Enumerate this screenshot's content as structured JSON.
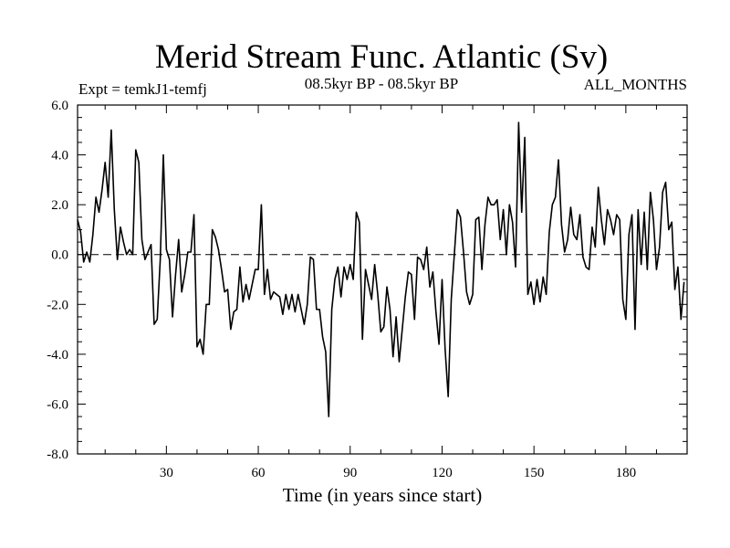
{
  "chart_data": {
    "type": "line",
    "title": "Merid Stream Func. Atlantic (Sv)",
    "subtitle": "08.5kyr BP - 08.5kyr BP",
    "experiment_label": "Expt = temkJ1-temfj",
    "period_label": "ALL_MONTHS",
    "xlabel": "Time (in years since start)",
    "ylabel": "",
    "xlim": [
      1,
      200
    ],
    "ylim": [
      -8,
      6
    ],
    "x_ticks": [
      30,
      60,
      90,
      120,
      150,
      180
    ],
    "x_tick_labels": [
      "30",
      "60",
      "90",
      "120",
      "150",
      "180"
    ],
    "y_ticks": [
      -8,
      -6,
      -4,
      -2,
      0,
      2,
      4,
      6
    ],
    "y_tick_labels": [
      "-8.0",
      "-6.0",
      "-4.0",
      "-2.0",
      "0.0",
      "2.0",
      "4.0",
      "6.0"
    ],
    "zero_line": {
      "value": 0,
      "style": "dashed"
    },
    "grid": false,
    "series": [
      {
        "name": "Merid Stream Func. Atlantic",
        "color": "#000000",
        "x_start": 1,
        "x_step": 1,
        "values": [
          1.4,
          0.9,
          -0.3,
          0.1,
          -0.3,
          0.8,
          2.3,
          1.7,
          2.6,
          3.7,
          2.3,
          5.0,
          1.8,
          -0.2,
          1.1,
          0.5,
          0.0,
          0.2,
          0.0,
          4.2,
          3.7,
          0.6,
          -0.2,
          0.1,
          0.4,
          -2.8,
          -2.6,
          -0.2,
          4.0,
          0.2,
          -0.2,
          -2.5,
          -0.8,
          0.6,
          -1.5,
          -0.8,
          0.1,
          0.1,
          1.6,
          -3.7,
          -3.4,
          -4.0,
          -2.0,
          -2.0,
          1.0,
          0.7,
          0.2,
          -0.6,
          -1.5,
          -1.4,
          -3.0,
          -2.3,
          -2.2,
          -0.5,
          -1.9,
          -1.2,
          -1.8,
          -1.2,
          -0.6,
          -0.6,
          2.0,
          -1.6,
          -0.6,
          -1.8,
          -1.5,
          -1.6,
          -1.7,
          -2.4,
          -1.6,
          -2.2,
          -1.6,
          -2.3,
          -1.6,
          -2.2,
          -2.8,
          -2.0,
          -0.1,
          -0.2,
          -2.2,
          -2.2,
          -3.3,
          -3.9,
          -6.5,
          -2.2,
          -1.0,
          -0.5,
          -1.7,
          -0.5,
          -1.0,
          -0.4,
          -1.0,
          1.7,
          1.3,
          -3.4,
          -0.6,
          -1.2,
          -1.8,
          -0.4,
          -1.6,
          -3.1,
          -2.9,
          -1.3,
          -2.2,
          -4.1,
          -2.5,
          -4.3,
          -3.0,
          -1.7,
          -0.7,
          -0.8,
          -2.6,
          -0.1,
          -0.2,
          -0.6,
          0.3,
          -1.3,
          -0.7,
          -2.3,
          -3.6,
          -1.0,
          -3.8,
          -5.7,
          -1.8,
          0.0,
          1.8,
          1.5,
          0.1,
          -1.5,
          -2.0,
          -1.6,
          1.4,
          1.5,
          -0.6,
          1.2,
          2.3,
          2.0,
          2.0,
          2.2,
          0.6,
          1.8,
          0.0,
          2.0,
          1.3,
          -0.5,
          5.3,
          1.7,
          4.7,
          -1.6,
          -1.1,
          -2.0,
          -1.0,
          -1.9,
          -0.9,
          -1.6,
          0.9,
          2.0,
          2.3,
          3.8,
          1.2,
          0.1,
          0.6,
          1.9,
          0.8,
          0.6,
          1.6,
          -0.1,
          -0.5,
          -0.6,
          1.1,
          0.3,
          2.7,
          1.4,
          0.4,
          1.8,
          1.4,
          0.8,
          1.6,
          1.4,
          -1.8,
          -2.6,
          0.8,
          1.6,
          -3.0,
          1.8,
          -0.4,
          1.7,
          -0.6,
          2.5,
          1.4,
          -0.6,
          0.3,
          2.5,
          2.9,
          1.0,
          1.3,
          -1.4,
          -0.5,
          -2.6,
          -1.1
        ]
      }
    ]
  }
}
